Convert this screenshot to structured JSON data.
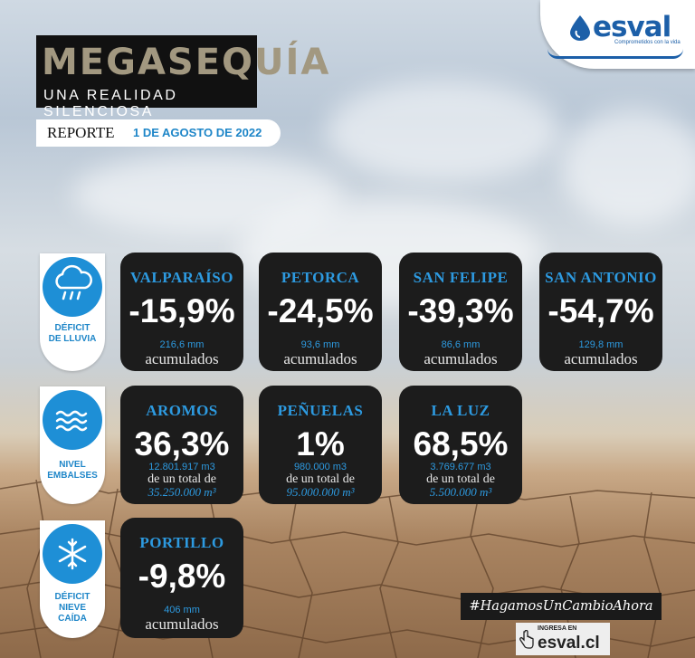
{
  "header": {
    "title": "MEGASEQUÍA",
    "subtitle": "UNA REALIDAD SILENCIOSA",
    "report_label": "REPORTE",
    "report_date": "1 DE AGOSTO DE 2022"
  },
  "brand": {
    "name": "esval",
    "tagline": "Comprometidos con la vida",
    "color": "#1c5fa8"
  },
  "categories": [
    {
      "icon": "rain-cloud-icon",
      "label_line1": "DÉFICIT",
      "label_line2": "DE LLUVIA",
      "label_line3": ""
    },
    {
      "icon": "water-waves-icon",
      "label_line1": "NIVEL",
      "label_line2": "EMBALSES",
      "label_line3": ""
    },
    {
      "icon": "snowflake-icon",
      "label_line1": "DÉFICIT",
      "label_line2": "NIEVE",
      "label_line3": "CAÍDA"
    }
  ],
  "rainfall": [
    {
      "name": "VALPARAÍSO",
      "value": "-15,9%",
      "amount": "216,6 mm",
      "unit": "acumulados"
    },
    {
      "name": "PETORCA",
      "value": "-24,5%",
      "amount": "93,6 mm",
      "unit": "acumulados"
    },
    {
      "name": "SAN FELIPE",
      "value": "-39,3%",
      "amount": "86,6 mm",
      "unit": "acumulados"
    },
    {
      "name": "SAN ANTONIO",
      "value": "-54,7%",
      "amount": "129,8 mm",
      "unit": "acumulados"
    }
  ],
  "reservoirs": [
    {
      "name": "AROMOS",
      "value": "36,3%",
      "amount": "12.801.917 m3",
      "of_total": "de un total de",
      "total": "35.250.000 m³"
    },
    {
      "name": "PEÑUELAS",
      "value": "1%",
      "amount": "980.000 m3",
      "of_total": "de un total de",
      "total": "95.000.000 m³"
    },
    {
      "name": "LA LUZ",
      "value": "68,5%",
      "amount": "3.769.677 m3",
      "of_total": "de un total de",
      "total": "5.500.000 m³"
    }
  ],
  "snow": [
    {
      "name": "PORTILLO",
      "value": "-9,8%",
      "amount": "406 mm",
      "unit": "acumulados"
    }
  ],
  "footer": {
    "hashtag": "#HagamosUnCambioAhora",
    "cta_small": "INGRESA EN",
    "cta_big": "esval.cl"
  },
  "colors": {
    "accent": "#2d9ae0",
    "card": "#1c1c1c",
    "icon_circle": "#1e8fd6"
  }
}
